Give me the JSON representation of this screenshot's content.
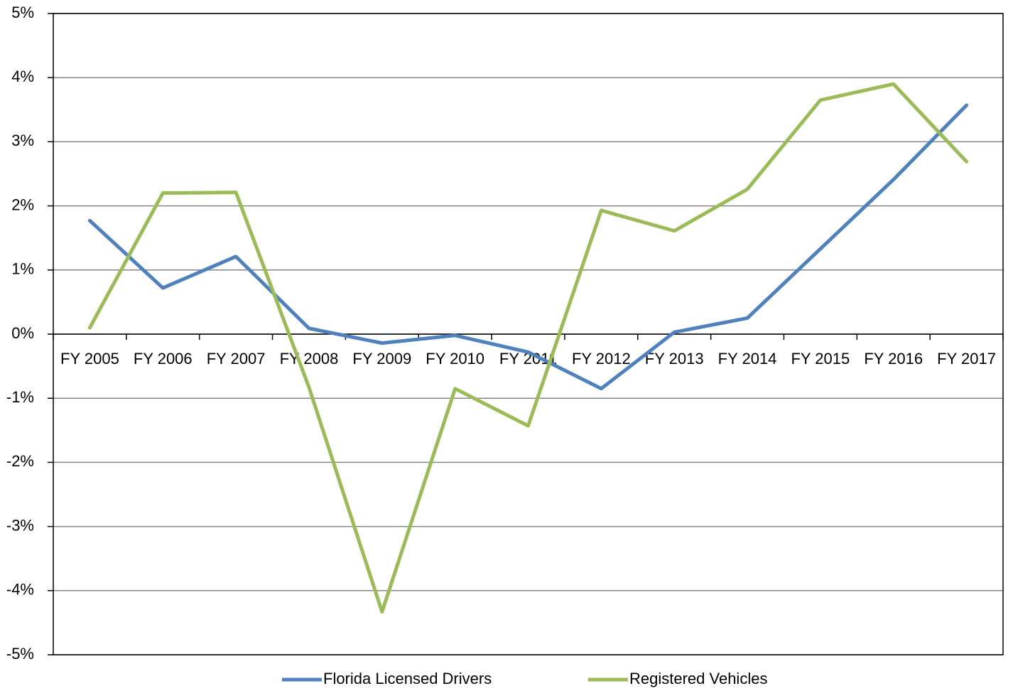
{
  "chart_data": {
    "type": "line",
    "categories": [
      "FY 2005",
      "FY 2006",
      "FY 2007",
      "FY 2008",
      "FY 2009",
      "FY 2010",
      "FY 2011",
      "FY 2012",
      "FY 2013",
      "FY 2014",
      "FY 2015",
      "FY 2016",
      "FY 2017"
    ],
    "series": [
      {
        "name": "Florida Licensed Drivers",
        "color": "#4f81bd",
        "values": [
          1.77,
          0.72,
          1.21,
          0.09,
          -0.14,
          -0.02,
          -0.28,
          -0.85,
          0.03,
          0.25,
          1.33,
          2.41,
          3.57
        ]
      },
      {
        "name": "Registered Vehicles",
        "color": "#9bbb59",
        "values": [
          0.1,
          2.2,
          2.21,
          -0.83,
          -4.33,
          -0.85,
          -1.43,
          1.93,
          1.61,
          2.26,
          3.65,
          3.9,
          2.69
        ]
      }
    ],
    "ylim": [
      -5,
      5
    ],
    "yticks": [
      {
        "value": -5,
        "label": "-5%"
      },
      {
        "value": -4,
        "label": "-4%"
      },
      {
        "value": -3,
        "label": "-3%"
      },
      {
        "value": -2,
        "label": "-2%"
      },
      {
        "value": -1,
        "label": "-1%"
      },
      {
        "value": 0,
        "label": "0%"
      },
      {
        "value": 1,
        "label": "1%"
      },
      {
        "value": 2,
        "label": "2%"
      },
      {
        "value": 3,
        "label": "3%"
      },
      {
        "value": 4,
        "label": "4%"
      },
      {
        "value": 5,
        "label": "5%"
      }
    ],
    "grid": true,
    "legend": "bottom"
  }
}
